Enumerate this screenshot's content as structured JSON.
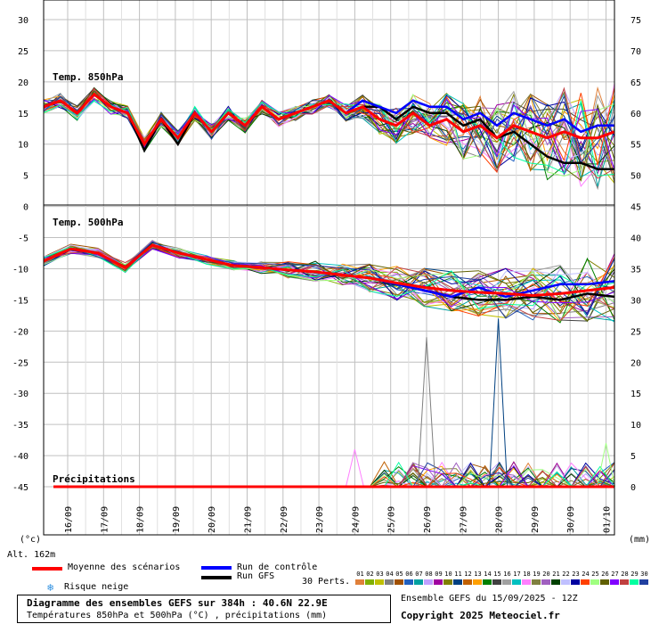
{
  "chart_data": [
    {
      "type": "line",
      "panel": "temperature",
      "labels": {
        "t850": "Temp. 850hPa",
        "t500": "Temp. 500hPa",
        "precip": "Précipitations"
      },
      "left_ticks": [
        "30",
        "25",
        "20",
        "15",
        "10",
        "5",
        "0",
        "-5",
        "-10",
        "-15",
        "-20",
        "-25",
        "-30",
        "-35",
        "-40",
        "-45"
      ],
      "right_ticks": [
        "75",
        "70",
        "65",
        "60",
        "55",
        "50",
        "45",
        "40",
        "35",
        "30",
        "25",
        "20",
        "15",
        "10",
        "5",
        "0"
      ],
      "left_unit": "(°c)",
      "right_unit": "(mm)",
      "x_categories": [
        "16/09",
        "17/09",
        "18/09",
        "19/09",
        "20/09",
        "21/09",
        "22/09",
        "23/09",
        "24/09",
        "25/09",
        "26/09",
        "27/09",
        "28/09",
        "29/09",
        "30/09",
        "01/10"
      ],
      "t850_mean": [
        16,
        17,
        15,
        18,
        16,
        15,
        10,
        14,
        11,
        15,
        12,
        15,
        13,
        16,
        14,
        15,
        16,
        17,
        15,
        16,
        14,
        13,
        15,
        13,
        14,
        12,
        13,
        11,
        13,
        12,
        11,
        12,
        11,
        11,
        12
      ],
      "t850_control": [
        16,
        17,
        15,
        18,
        16,
        15,
        10,
        14,
        11,
        15,
        12,
        15,
        13,
        16,
        14,
        15,
        16,
        17,
        15,
        17,
        16,
        15,
        17,
        16,
        16,
        14,
        15,
        13,
        15,
        14,
        13,
        14,
        12,
        13,
        13
      ],
      "t850_gfs": [
        16,
        17,
        15,
        18,
        16,
        15,
        9,
        14,
        10,
        15,
        12,
        15,
        13,
        16,
        14,
        15,
        16,
        17,
        15,
        16,
        16,
        14,
        16,
        15,
        15,
        13,
        14,
        11,
        12,
        10,
        8,
        7,
        7,
        6,
        6
      ],
      "t500_mean": [
        -8.8,
        -6.8,
        -7.5,
        -9.8,
        -6.2,
        -7.5,
        -8.5,
        -9.5,
        -9.8,
        -10.2,
        -10.5,
        -11,
        -11.5,
        -12.3,
        -13,
        -13.5,
        -13.8,
        -14,
        -14.3,
        -14,
        -13.5,
        -13
      ],
      "t500_control": [
        -8.8,
        -6.8,
        -7.5,
        -9.8,
        -6.2,
        -7.5,
        -8.5,
        -9.5,
        -9.8,
        -10.2,
        -10.5,
        -11,
        -11.5,
        -12.5,
        -13.5,
        -14.5,
        -13,
        -14.5,
        -13.5,
        -12.5,
        -12.5,
        -12
      ],
      "t500_gfs": [
        -8.8,
        -6.8,
        -7.5,
        -9.8,
        -6.2,
        -7.5,
        -8.5,
        -9.5,
        -9.8,
        -10.2,
        -10.5,
        -11,
        -11.5,
        -12.5,
        -13.5,
        -14.5,
        -15,
        -15,
        -14.5,
        -15,
        -14,
        -14.5
      ],
      "precip_spikes_mm": [
        {
          "date": "26/09",
          "value": 24
        },
        {
          "date": "28/09",
          "value": 27
        },
        {
          "date": "24/09",
          "value": 6
        },
        {
          "date": "01/10",
          "value": 7
        }
      ],
      "left_range": [
        -45,
        30
      ],
      "right_range": [
        0,
        75
      ],
      "grid": true
    }
  ],
  "altitude": "Alt. 162m",
  "legend": {
    "mean": "Moyenne des scénarios",
    "control": "Run de contrôle",
    "gfs": "Run GFS",
    "snow": "Risque neige",
    "perts": "30 Perts.",
    "pert_numbers": [
      "01",
      "02",
      "03",
      "04",
      "05",
      "06",
      "07",
      "08",
      "09",
      "10",
      "11",
      "12",
      "13",
      "14",
      "15",
      "16",
      "17",
      "18",
      "19",
      "20",
      "21",
      "22",
      "23",
      "24",
      "25",
      "26",
      "27",
      "28",
      "29",
      "30"
    ],
    "pert_colors": [
      "#e0803a",
      "#80b000",
      "#c0c000",
      "#808080",
      "#a05000",
      "#2060c0",
      "#00a0a0",
      "#c0a0ff",
      "#a000a0",
      "#808000",
      "#004080",
      "#c06000",
      "#ffa000",
      "#008000",
      "#404040",
      "#a0a0a0",
      "#00c0c0",
      "#ff80ff",
      "#808040",
      "#a060c0",
      "#004000",
      "#c0c0ff",
      "#0000a0",
      "#ff4000",
      "#a0ff80",
      "#606000",
      "#8000ff",
      "#c04040",
      "#00ffa0",
      "#2040a0"
    ],
    "colors": {
      "mean": "#ff0000",
      "control": "#0000ff",
      "gfs": "#000000",
      "snow": "#3090e0"
    }
  },
  "footer": {
    "title": "Diagramme des ensembles GEFS sur 384h : 40.6N 22.9E",
    "subtitle": "Températures 850hPa et 500hPa (°C) , précipitations (mm)",
    "run": "Ensemble GEFS du 15/09/2025 - 12Z",
    "copyright": "Copyright 2025 Meteociel.fr"
  }
}
